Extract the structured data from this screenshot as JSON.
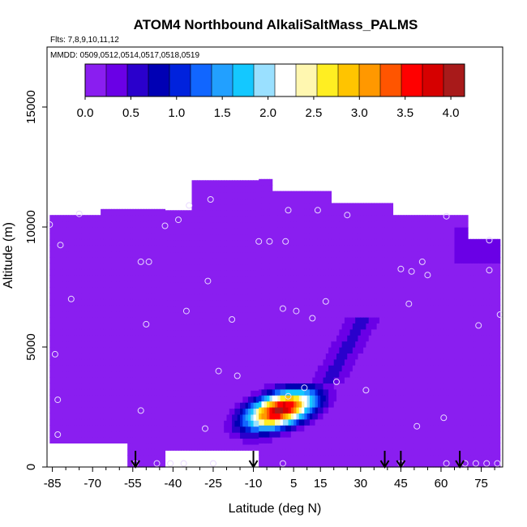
{
  "chart_data": {
    "type": "heatmap",
    "title": "ATOM4 Northbound AlkaliSaltMass_PALMS",
    "subtitle_flights": "Flts: 7,8,9,10,11,12",
    "subtitle_dates": "MMDD: 0509,0512,0514,0517,0518,0519",
    "xlabel": "Latitude (deg N)",
    "ylabel": "Altitude (m)",
    "xlim": [
      -87,
      83
    ],
    "ylim": [
      0,
      17500
    ],
    "x_ticks": [
      -85,
      -70,
      -55,
      -40,
      -25,
      -10,
      5,
      15,
      30,
      45,
      60,
      75
    ],
    "x_tick_labels": [
      "-85",
      "-70",
      "-55",
      "-40",
      "-25",
      "-10",
      "5",
      "15",
      "30",
      "45",
      "60",
      "75"
    ],
    "y_ticks": [
      0,
      5000,
      10000,
      15000
    ],
    "y_tick_labels": [
      "0",
      "5000",
      "10000",
      "15000"
    ],
    "colorbar": {
      "range": [
        0,
        4.15
      ],
      "ticks": [
        0.0,
        0.5,
        1.0,
        1.5,
        2.0,
        2.5,
        3.0,
        3.5,
        4.0
      ],
      "tick_labels": [
        "0.0",
        "0.5",
        "1.0",
        "1.5",
        "2.0",
        "2.5",
        "3.0",
        "3.5",
        "4.0"
      ],
      "colors": [
        "#8a1ef0",
        "#6a00e6",
        "#2a00cc",
        "#0000b4",
        "#0022dd",
        "#1166ff",
        "#22a0ff",
        "#14c8ff",
        "#9ae0ff",
        "#ffffff",
        "#fff7b0",
        "#ffee22",
        "#ffc400",
        "#ff9800",
        "#ff5500",
        "#ff0000",
        "#d60000",
        "#a81a1a"
      ]
    },
    "background_value": 0.1,
    "coverage_top_altitude": [
      {
        "from": -87,
        "to": -67,
        "top": 10500
      },
      {
        "from": -67,
        "to": -33,
        "top": 10700
      },
      {
        "from": -33,
        "to": -3,
        "top": 11900
      },
      {
        "from": -3,
        "to": 19,
        "top": 11500
      },
      {
        "from": 19,
        "to": 42,
        "top": 11000
      },
      {
        "from": 42,
        "to": 70,
        "top": 10500
      },
      {
        "from": 70,
        "to": 82,
        "top": 9500
      }
    ],
    "features": [
      {
        "name": "enhanced layer",
        "lat_range": [
          -28,
          18
        ],
        "alt_range": [
          500,
          3400
        ],
        "peak_value": 4.0,
        "peak_lat": 0,
        "peak_alt": 2400
      },
      {
        "name": "upper plume",
        "lat_range": [
          10,
          36
        ],
        "alt_range": [
          3500,
          6300
        ],
        "peak_value": 0.6,
        "peak_lat": 23,
        "peak_alt": 4600
      },
      {
        "name": "north upper patch",
        "lat_range": [
          65,
          82
        ],
        "alt_range": [
          8500,
          10000
        ],
        "peak_value": 0.4
      }
    ],
    "profile_markers_latitude": [
      -54,
      -10,
      39,
      45,
      67
    ],
    "observation_points": [
      {
        "lat": -86,
        "alt": 10100
      },
      {
        "lat": -82,
        "alt": 9250
      },
      {
        "lat": -75,
        "alt": 10550
      },
      {
        "lat": -78,
        "alt": 7000
      },
      {
        "lat": -84,
        "alt": 4700
      },
      {
        "lat": -83,
        "alt": 2800
      },
      {
        "lat": -83,
        "alt": 1350
      },
      {
        "lat": -52,
        "alt": 8550
      },
      {
        "lat": -49,
        "alt": 8550
      },
      {
        "lat": -50,
        "alt": 5950
      },
      {
        "lat": -52,
        "alt": 2350
      },
      {
        "lat": -43,
        "alt": 10050
      },
      {
        "lat": -38,
        "alt": 10300
      },
      {
        "lat": -34,
        "alt": 10900
      },
      {
        "lat": -35,
        "alt": 6500
      },
      {
        "lat": -26,
        "alt": 11150
      },
      {
        "lat": -27,
        "alt": 7750
      },
      {
        "lat": -23,
        "alt": 4000
      },
      {
        "lat": -18,
        "alt": 6150
      },
      {
        "lat": -16,
        "alt": 3800
      },
      {
        "lat": -28,
        "alt": 1600
      },
      {
        "lat": -8,
        "alt": 9400
      },
      {
        "lat": -4,
        "alt": 9400
      },
      {
        "lat": 2,
        "alt": 9400
      },
      {
        "lat": 3,
        "alt": 10700
      },
      {
        "lat": 1,
        "alt": 6600
      },
      {
        "lat": 6,
        "alt": 6500
      },
      {
        "lat": 14,
        "alt": 10700
      },
      {
        "lat": 12,
        "alt": 6200
      },
      {
        "lat": 17,
        "alt": 6900
      },
      {
        "lat": 25,
        "alt": 10500
      },
      {
        "lat": 21,
        "alt": 3550
      },
      {
        "lat": 32,
        "alt": 3200
      },
      {
        "lat": 3,
        "alt": 2950
      },
      {
        "lat": 9,
        "alt": 3300
      },
      {
        "lat": 45,
        "alt": 8250
      },
      {
        "lat": 49,
        "alt": 8150
      },
      {
        "lat": 53,
        "alt": 8550
      },
      {
        "lat": 55,
        "alt": 8000
      },
      {
        "lat": 48,
        "alt": 6800
      },
      {
        "lat": 51,
        "alt": 1700
      },
      {
        "lat": 62,
        "alt": 10450
      },
      {
        "lat": 61,
        "alt": 2050
      },
      {
        "lat": 78,
        "alt": 9450
      },
      {
        "lat": 78,
        "alt": 8200
      },
      {
        "lat": 82,
        "alt": 6350
      },
      {
        "lat": 74,
        "alt": 5900
      },
      {
        "lat": -54,
        "alt": 150
      },
      {
        "lat": -46,
        "alt": 150
      },
      {
        "lat": -41,
        "alt": 150
      },
      {
        "lat": -36,
        "alt": 150
      },
      {
        "lat": -25,
        "alt": 150
      },
      {
        "lat": -10,
        "alt": 150
      },
      {
        "lat": 1,
        "alt": 150
      },
      {
        "lat": 45,
        "alt": 150
      },
      {
        "lat": 62,
        "alt": 150
      },
      {
        "lat": 69,
        "alt": 150
      },
      {
        "lat": 73,
        "alt": 150
      },
      {
        "lat": 77,
        "alt": 150
      },
      {
        "lat": 81,
        "alt": 150
      }
    ]
  }
}
